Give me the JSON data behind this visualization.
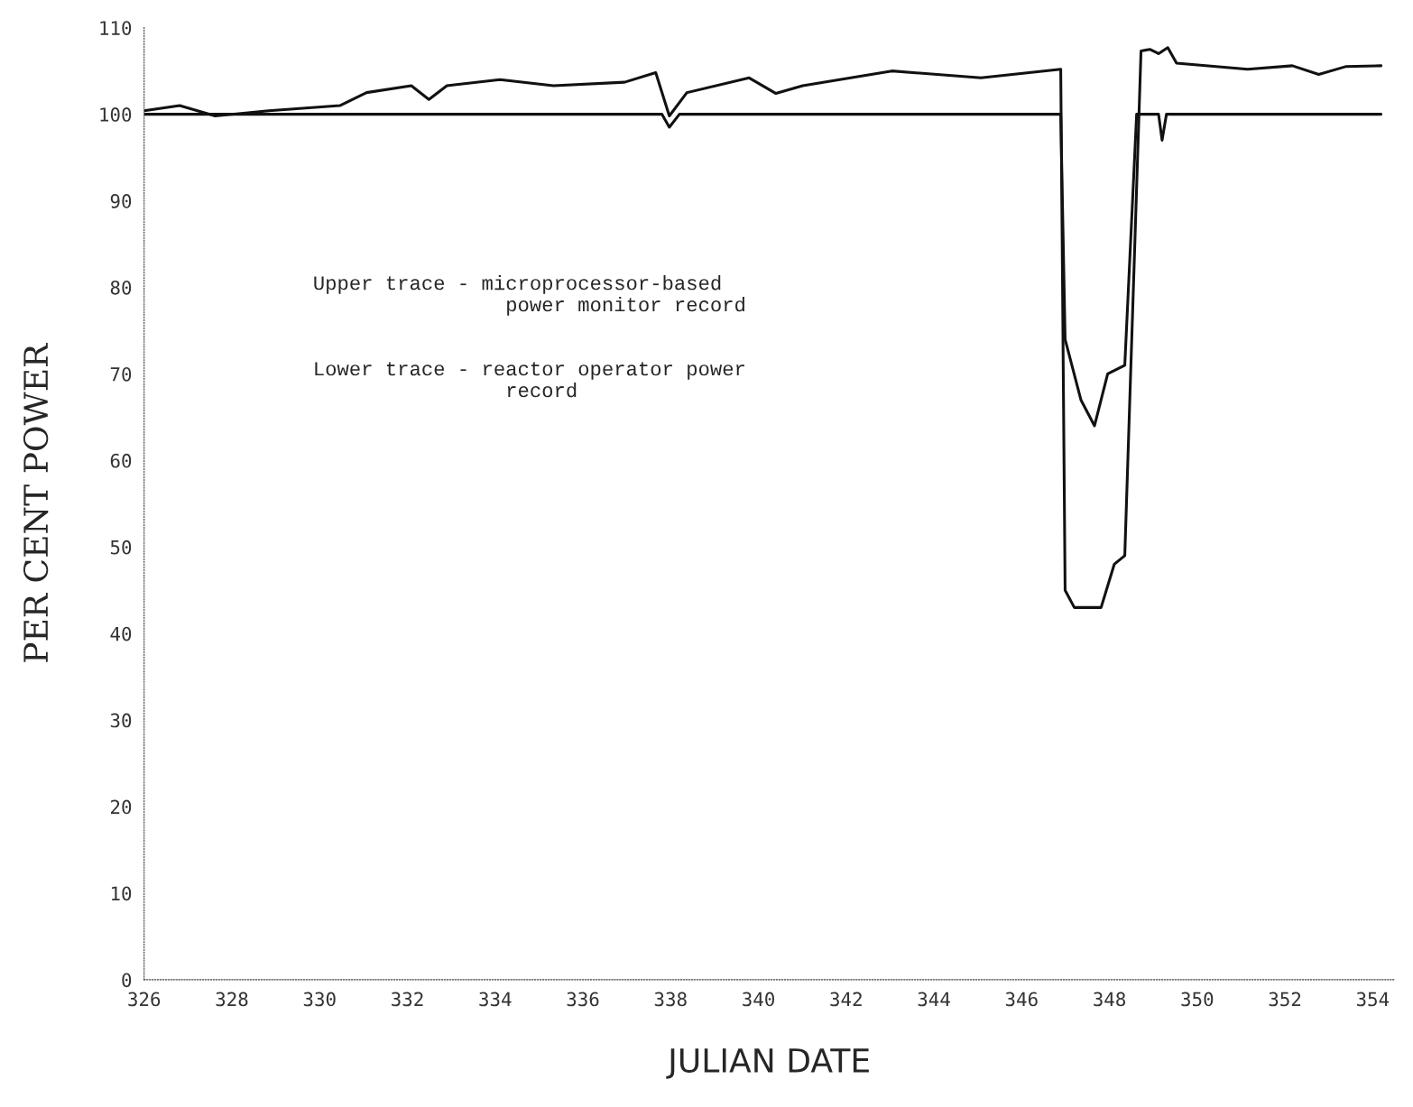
{
  "chart_data": {
    "type": "line",
    "xlabel": "JULIAN DATE",
    "ylabel": "PER CENT POWER",
    "annotations": [
      "Upper trace - microprocessor-based\n                power monitor record",
      "Lower trace - reactor operator power\n                record"
    ],
    "xlim": [
      326,
      354.5
    ],
    "ylim": [
      0,
      110
    ],
    "xticks": [
      326,
      328,
      330,
      332,
      334,
      336,
      338,
      340,
      342,
      344,
      346,
      348,
      350,
      352,
      354
    ],
    "yticks": [
      0,
      10,
      20,
      30,
      40,
      50,
      60,
      70,
      80,
      90,
      100,
      110
    ],
    "marker": "none",
    "line_style": "solid",
    "series": [
      {
        "color": "#111111",
        "x": [
          326.0,
          326.81,
          327.62,
          328.84,
          330.46,
          331.07,
          332.09,
          332.49,
          332.9,
          334.11,
          335.33,
          336.95,
          337.66,
          337.97,
          338.37,
          339.79,
          340.4,
          341.01,
          343.04,
          345.07,
          346.89,
          346.99,
          347.2,
          347.81,
          348.11,
          348.35,
          348.72,
          348.92,
          349.12,
          349.33,
          349.53,
          351.15,
          352.17,
          352.77,
          353.38,
          354.19
        ],
        "values": [
          100.4,
          101,
          99.8,
          100.4,
          101,
          102.5,
          103.3,
          101.7,
          103.3,
          104,
          103.3,
          103.7,
          104.8,
          99.8,
          102.5,
          104.2,
          102.4,
          103.3,
          105,
          104.2,
          105.2,
          45,
          43,
          43,
          48,
          49,
          107.3,
          107.5,
          107,
          107.7,
          105.9,
          105.2,
          105.6,
          104.6,
          105.5,
          105.6
        ]
      },
      {
        "color": "#111111",
        "x": [
          326.0,
          337.8,
          337.97,
          338.2,
          346.89,
          346.99,
          347.35,
          347.66,
          347.96,
          348.35,
          348.62,
          349.12,
          349.2,
          349.3,
          354.19
        ],
        "values": [
          100,
          100,
          98.5,
          100,
          100,
          74,
          67,
          64,
          70,
          71,
          100,
          100,
          97,
          100,
          100
        ]
      }
    ]
  }
}
